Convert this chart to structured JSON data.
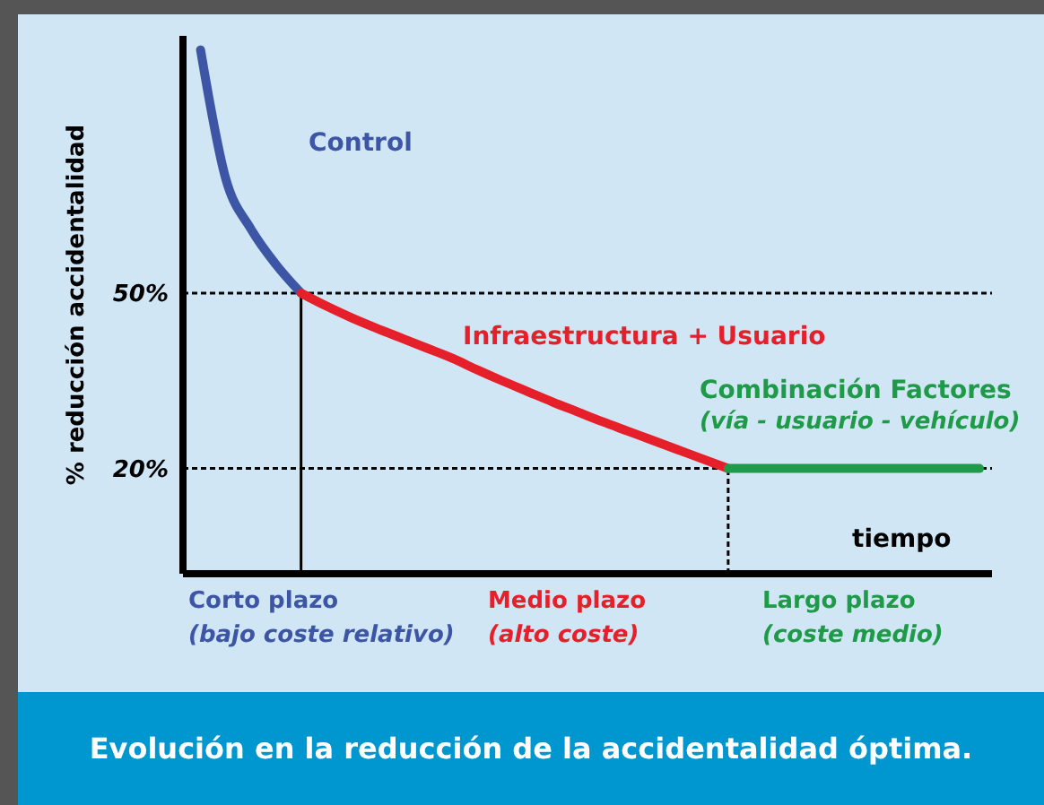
{
  "chart_data": {
    "type": "line",
    "title": "Evolución en la reducción de la accidentalidad óptima.",
    "xlabel": "tiempo",
    "ylabel": "% reducción accidentalidad",
    "categories": [
      null,
      null,
      null,
      null,
      null,
      null,
      null,
      null,
      null,
      null,
      null,
      null,
      null,
      null,
      null,
      null,
      null,
      null,
      null,
      null,
      null,
      null,
      null,
      null,
      null,
      null,
      null,
      null,
      null,
      null,
      null,
      null
    ],
    "series": [
      {
        "name": "Control",
        "color": "#3d55a5",
        "values": [
          91.6,
          69.6,
          61,
          54.9,
          50,
          null,
          null,
          null,
          null,
          null,
          null,
          null,
          null,
          null,
          null,
          null,
          null,
          null,
          null,
          null,
          null,
          null,
          null,
          null,
          null,
          null,
          null,
          null,
          null,
          null,
          null,
          null
        ]
      },
      {
        "name": "Infraestructura + Usuario",
        "color": "#e5202a",
        "values": [
          null,
          null,
          null,
          null,
          50,
          47.8,
          45.8,
          44,
          42.3,
          40.6,
          38.9,
          36.9,
          35,
          33.2,
          31.4,
          29.7,
          28,
          26.4,
          24.8,
          23.2,
          21.6,
          20,
          null,
          null,
          null,
          null,
          null,
          null,
          null,
          null,
          null,
          null
        ]
      },
      {
        "name": "Combinación Factores",
        "color": "#1e9a48",
        "values": [
          null,
          null,
          null,
          null,
          null,
          null,
          null,
          null,
          null,
          null,
          null,
          null,
          null,
          null,
          null,
          null,
          null,
          null,
          null,
          null,
          null,
          20,
          20,
          20,
          20,
          20,
          20,
          20,
          20,
          20,
          20,
          20
        ]
      }
    ],
    "ylim": [
      2,
      94
    ],
    "yticks": [
      {
        "value": 50,
        "label": "50%"
      },
      {
        "value": 20,
        "label": "20%"
      }
    ],
    "tick_labels": "y",
    "ref_lines": [
      {
        "axis": "y",
        "value": 50,
        "line_style": "dotted",
        "color": "#000000"
      },
      {
        "axis": "y",
        "value": 20,
        "line_style": "dotted",
        "color": "#000000"
      }
    ],
    "annotations": [
      "Corto plazo",
      "(bajo coste relativo)",
      "Medio plazo",
      "(alto coste)",
      "Largo plazo",
      "(coste medio)",
      "(vía - usuario - vehículo)"
    ],
    "marker": "none",
    "line_style": "solid"
  }
}
